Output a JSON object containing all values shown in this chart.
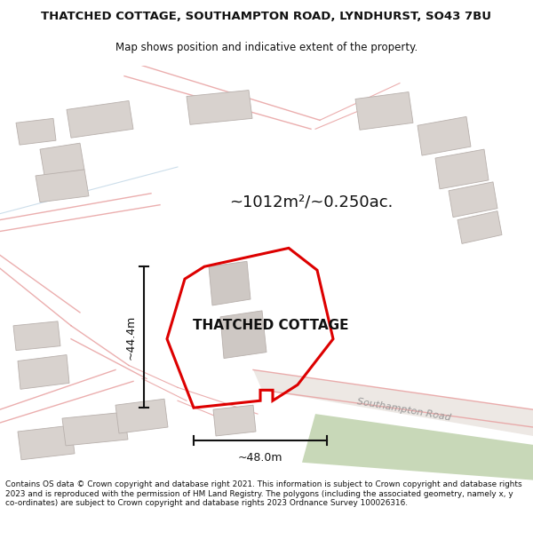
{
  "title_line1": "THATCHED COTTAGE, SOUTHAMPTON ROAD, LYNDHURST, SO43 7BU",
  "title_line2": "Map shows position and indicative extent of the property.",
  "footer_text": "Contains OS data © Crown copyright and database right 2021. This information is subject to Crown copyright and database rights 2023 and is reproduced with the permission of HM Land Registry. The polygons (including the associated geometry, namely x, y co-ordinates) are subject to Crown copyright and database rights 2023 Ordnance Survey 100026316.",
  "area_label": "~1012m²/~0.250ac.",
  "property_label": "THATCHED COTTAGE",
  "road_label": "Southampton Road",
  "dim_vertical": "~44.4m",
  "dim_horizontal": "~48.0m",
  "map_bg": "#f5f0ee",
  "road_pink": "#e8a0a0",
  "road_gray": "#d8d0cc",
  "property_poly_color": "#dd0000",
  "building_fill": "#d8d2ce",
  "building_edge": "#b8b0ac",
  "green_road_color": "#c8d8b8",
  "dim_line_color": "#111111",
  "text_color": "#111111"
}
